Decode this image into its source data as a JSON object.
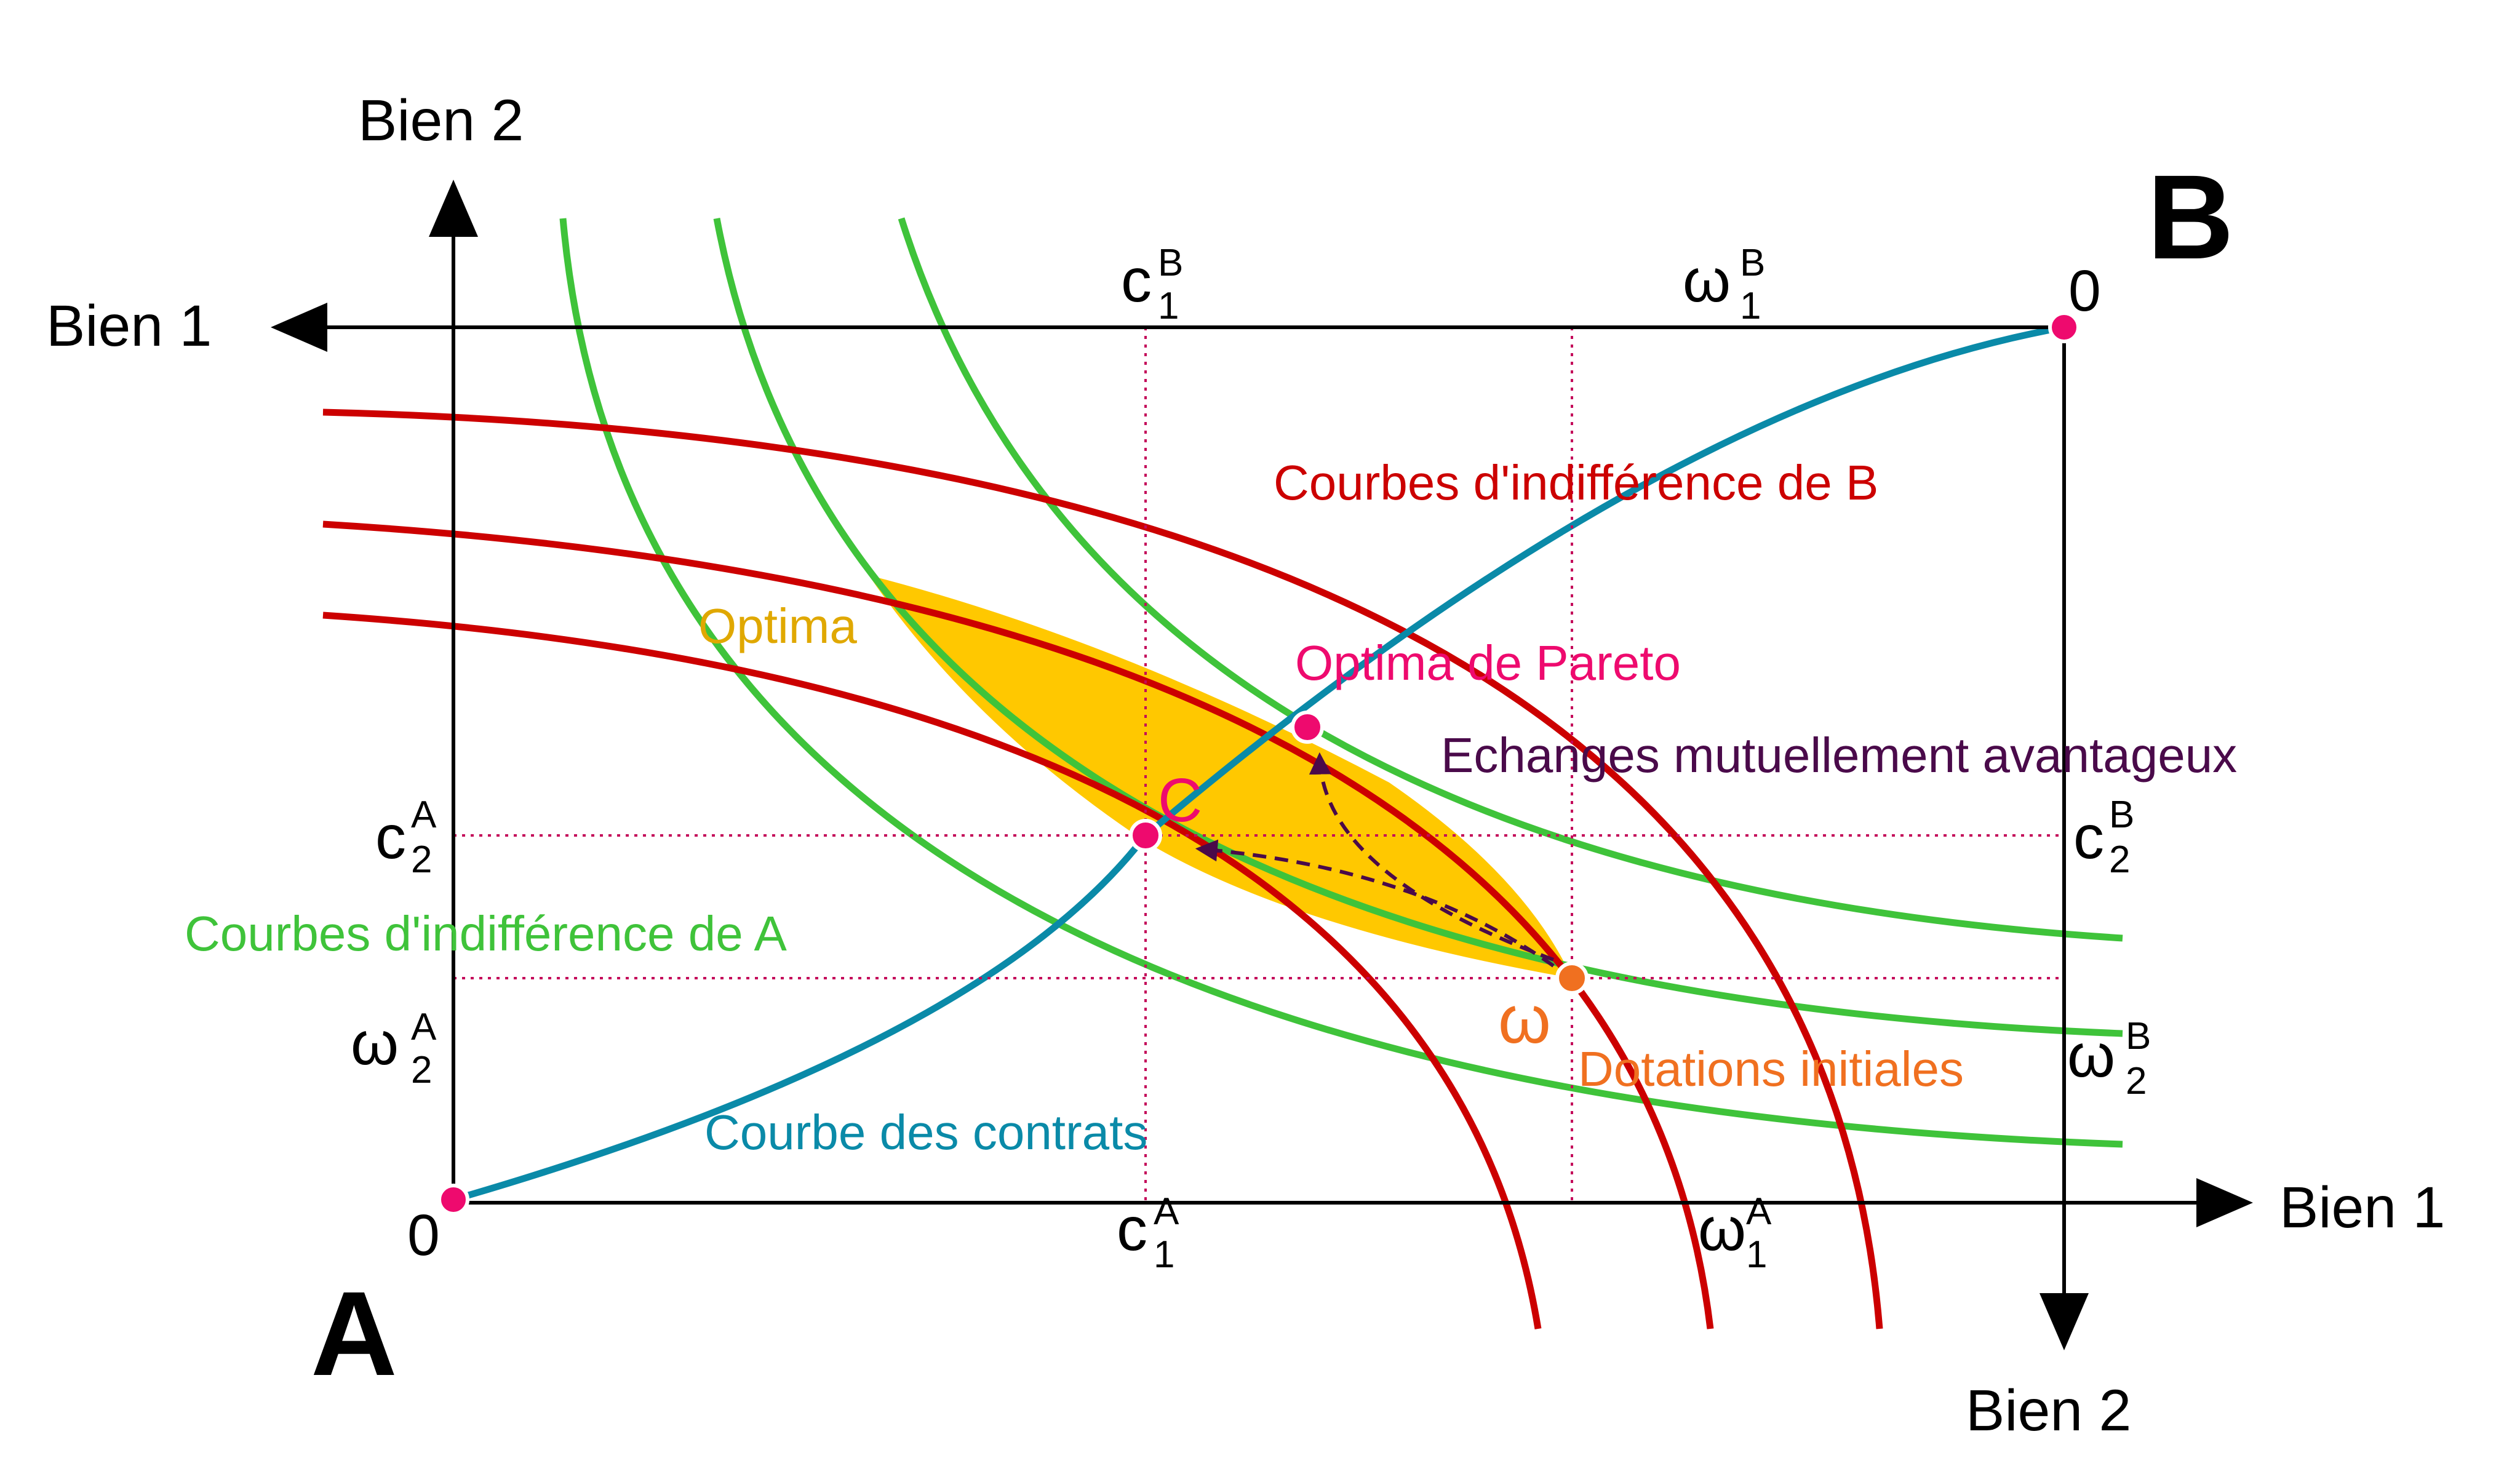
{
  "corners": {
    "a": "A",
    "b": "B"
  },
  "axes": {
    "a_horizontal": "Bien 1",
    "a_vertical": "Bien 2",
    "b_horizontal": "Bien 1",
    "b_vertical": "Bien 2",
    "origin_a": "0",
    "origin_b": "0"
  },
  "ticks": {
    "c1A": {
      "base": "c",
      "sub": "1",
      "sup": "A"
    },
    "c2A": {
      "base": "c",
      "sub": "2",
      "sup": "A"
    },
    "w1A": {
      "base": "ω",
      "sub": "1",
      "sup": "A"
    },
    "w2A": {
      "base": "ω",
      "sub": "2",
      "sup": "A"
    },
    "c1B": {
      "base": "c",
      "sub": "1",
      "sup": "B"
    },
    "c2B": {
      "base": "c",
      "sub": "2",
      "sup": "B"
    },
    "w1B": {
      "base": "ω",
      "sub": "1",
      "sup": "B"
    },
    "w2B": {
      "base": "ω",
      "sub": "2",
      "sup": "B"
    }
  },
  "labels": {
    "indiff_b": "Courbes d'indifférence de B",
    "indiff_a": "Courbes d'indifférence de A",
    "optima": "Optima",
    "pareto": "Optima de Pareto",
    "echanges": "Echanges mutuellement avantageux",
    "contract": "Courbe des contrats",
    "dotations": "Dotations initiales",
    "point_c": "C",
    "point_omega": "ω"
  },
  "colors": {
    "axis": "#000000",
    "indiff_a": "#3fc33a",
    "indiff_b": "#cc0000",
    "contract": "#0a8aa8",
    "optima_fill": "#ffc800",
    "optima_text": "#e0a800",
    "pareto": "#ee0a6e",
    "echanges": "#4a0a4a",
    "dotations": "#f07020",
    "guide": "#c40a5a",
    "point": "#ee0a6e",
    "omega_point": "#f07020"
  }
}
